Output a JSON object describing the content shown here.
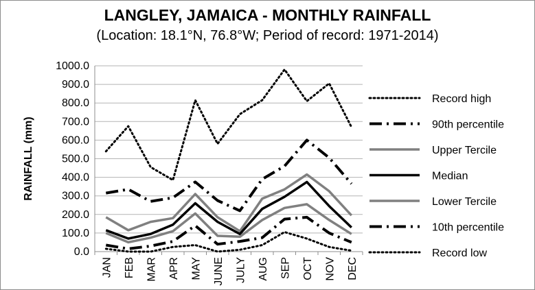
{
  "chart_data": {
    "type": "line",
    "title": "LANGLEY, JAMAICA - MONTHLY RAINFALL",
    "subtitle": "(Location: 18.1°N, 76.8°W; Period of record: 1971-2014)",
    "ylabel": "RAINFALL (mm)",
    "xlabel": "",
    "categories": [
      "JAN",
      "FEB",
      "MAR",
      "APR",
      "MAY",
      "JUNE",
      "JULY",
      "AUG",
      "SEP",
      "OCT",
      "NOV",
      "DEC"
    ],
    "ylim": [
      0,
      1000
    ],
    "yticks": [
      "0.0",
      "100.0",
      "200.0",
      "300.0",
      "400.0",
      "500.0",
      "600.0",
      "700.0",
      "800.0",
      "900.0",
      "1000.0"
    ],
    "grid": true,
    "legend_position": "right",
    "series": [
      {
        "name": "Record high",
        "style": "dotted",
        "color": "#000000",
        "values": [
          540,
          675,
          455,
          385,
          815,
          580,
          740,
          815,
          980,
          810,
          905,
          670
        ]
      },
      {
        "name": "90th percentile",
        "style": "dashdot",
        "color": "#000000",
        "values": [
          315,
          335,
          270,
          290,
          375,
          275,
          220,
          390,
          460,
          600,
          505,
          365
        ]
      },
      {
        "name": "Upper Tercile",
        "style": "solid",
        "color": "#808080",
        "values": [
          185,
          115,
          160,
          180,
          310,
          185,
          110,
          285,
          335,
          415,
          325,
          195
        ]
      },
      {
        "name": "Median",
        "style": "solid",
        "color": "#000000",
        "values": [
          115,
          70,
          95,
          145,
          260,
          160,
          95,
          230,
          295,
          375,
          245,
          130
        ]
      },
      {
        "name": "Lower Tercile",
        "style": "solid",
        "color": "#808080",
        "values": [
          100,
          50,
          75,
          110,
          205,
          85,
          80,
          170,
          235,
          255,
          170,
          95
        ]
      },
      {
        "name": "10th percentile",
        "style": "dashdot",
        "color": "#000000",
        "values": [
          35,
          15,
          30,
          55,
          140,
          40,
          55,
          75,
          175,
          185,
          100,
          50
        ]
      },
      {
        "name": "Record low",
        "style": "dotted",
        "color": "#000000",
        "values": [
          15,
          0,
          0,
          25,
          35,
          0,
          10,
          35,
          105,
          70,
          25,
          5
        ]
      }
    ]
  }
}
